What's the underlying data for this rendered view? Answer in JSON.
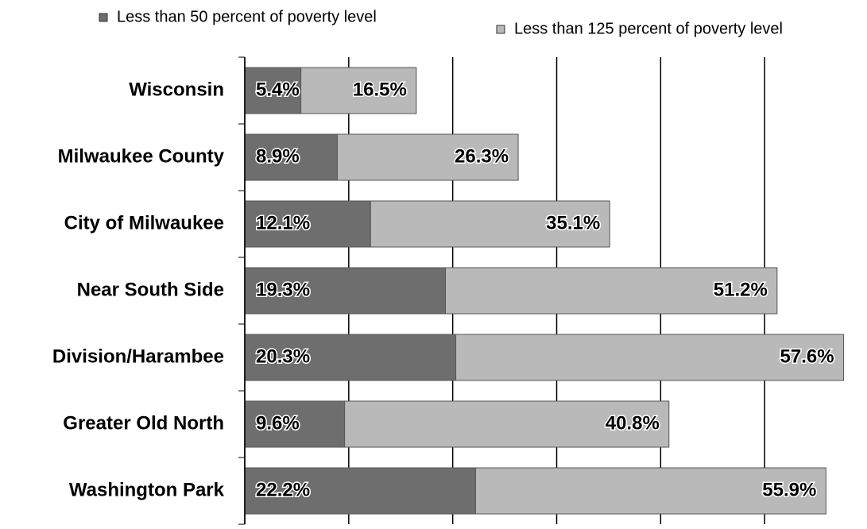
{
  "chart_data": {
    "type": "bar",
    "orientation": "horizontal",
    "overlap": true,
    "categories": [
      "Wisconsin",
      "Milwaukee County",
      "City of Milwaukee",
      "Near South Side",
      "Division/Harambee",
      "Greater Old North",
      "Washington Park"
    ],
    "series": [
      {
        "name": "Less than 50 percent of poverty level",
        "color": "#6e6e6e",
        "values": [
          5.4,
          8.9,
          12.1,
          19.3,
          20.3,
          9.6,
          22.2
        ],
        "value_labels": [
          "5.4%",
          "8.9%",
          "12.1%",
          "19.3%",
          "20.3%",
          "9.6%",
          "22.2%"
        ]
      },
      {
        "name": "Less than 125 percent of poverty level",
        "color": "#b9b9b9",
        "values": [
          16.5,
          26.3,
          35.1,
          51.2,
          57.6,
          40.8,
          55.9
        ],
        "value_labels": [
          "16.5%",
          "26.3%",
          "35.1%",
          "51.2%",
          "57.6%",
          "40.8%",
          "55.9%"
        ]
      }
    ],
    "xlim": [
      0,
      60
    ],
    "xticks": [
      0,
      10,
      20,
      30,
      40,
      50
    ],
    "grid": true
  }
}
